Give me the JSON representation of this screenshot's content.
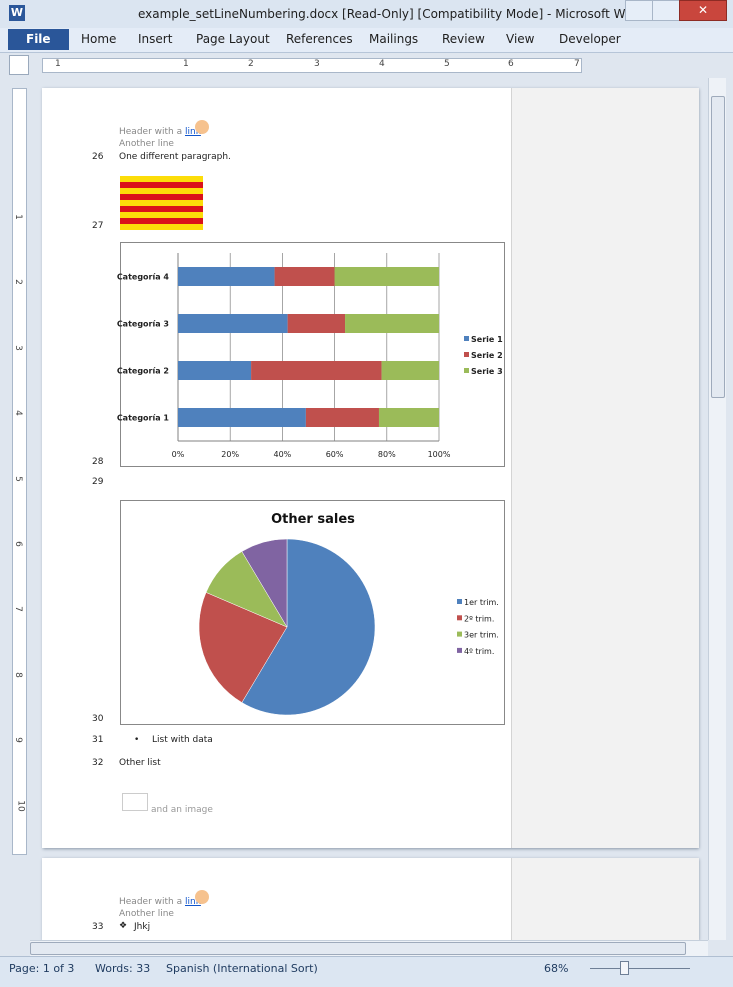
{
  "window": {
    "title": "example_setLineNumbering.docx [Read-Only] [Compatibility Mode]  -  Microsoft Word"
  },
  "ribbon": {
    "tabs": [
      "File",
      "Home",
      "Insert",
      "Page Layout",
      "References",
      "Mailings",
      "Review",
      "View",
      "Developer"
    ]
  },
  "ruler": {
    "horizontal": [
      "1",
      "1",
      "2",
      "3",
      "4",
      "5",
      "6",
      "7"
    ],
    "vertical": [
      "1",
      "2",
      "3",
      "4",
      "5",
      "6",
      "7",
      "8",
      "9",
      "10"
    ]
  },
  "page1": {
    "header": {
      "text": "Header with a",
      "link": "link",
      "line2": "Another line"
    },
    "lines": [
      {
        "number": "26",
        "text": "One different paragraph."
      },
      {
        "number": "27"
      },
      {
        "number": "28"
      },
      {
        "number": "29"
      },
      {
        "number": "30"
      },
      {
        "number": "31",
        "text": "List with data"
      },
      {
        "number": "32",
        "text": "Other list"
      }
    ],
    "image_caption": "and an image"
  },
  "page2": {
    "header": {
      "text": "Header with a",
      "link": "link",
      "line2": "Another line"
    },
    "lines": [
      {
        "number": "33",
        "text": "Jhkj"
      }
    ]
  },
  "bar_chart": {
    "type": "bar",
    "orientation": "horizontal",
    "stacked": "percent",
    "categories": [
      "Categoría 1",
      "Categoría 2",
      "Categoría 3",
      "Categoría 4"
    ],
    "series": [
      {
        "name": "Serie 1",
        "color": "#4f81bd",
        "values": [
          49,
          28,
          42,
          37
        ]
      },
      {
        "name": "Serie 2",
        "color": "#c0504d",
        "values": [
          28,
          50,
          22,
          23
        ]
      },
      {
        "name": "Serie 3",
        "color": "#9bbb59",
        "values": [
          23,
          22,
          36,
          40
        ]
      }
    ],
    "xlim": [
      0,
      100
    ],
    "xticks": [
      {
        "value": 0,
        "label": "0%"
      },
      {
        "value": 20,
        "label": "20%"
      },
      {
        "value": 40,
        "label": "40%"
      },
      {
        "value": 60,
        "label": "60%"
      },
      {
        "value": 80,
        "label": "80%"
      },
      {
        "value": 100,
        "label": "100%"
      }
    ],
    "grid": true,
    "legend": "right"
  },
  "pie_chart": {
    "type": "pie",
    "title": "Other sales",
    "categories": [
      "1er trim.",
      "2º trim.",
      "3er trim.",
      "4º trim."
    ],
    "values": [
      8.2,
      3.2,
      1.4,
      1.2
    ],
    "colors": [
      "#4f81bd",
      "#c0504d",
      "#9bbb59",
      "#8064a2"
    ],
    "legend": "right"
  },
  "status_bar": {
    "page": "Page: 1 of 3",
    "words": "Words: 33",
    "language": "Spanish (International Sort)",
    "zoom": "68%"
  }
}
